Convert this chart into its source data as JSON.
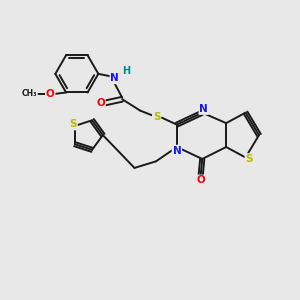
{
  "bg_color": "#e8e8e8",
  "bond_color": "#1a1a1a",
  "atom_colors": {
    "N": "#1414ff",
    "O": "#ff0000",
    "S": "#b8b800",
    "H": "#008b8b",
    "C": "#1a1a1a"
  },
  "figsize": [
    3.0,
    3.0
  ],
  "dpi": 100
}
